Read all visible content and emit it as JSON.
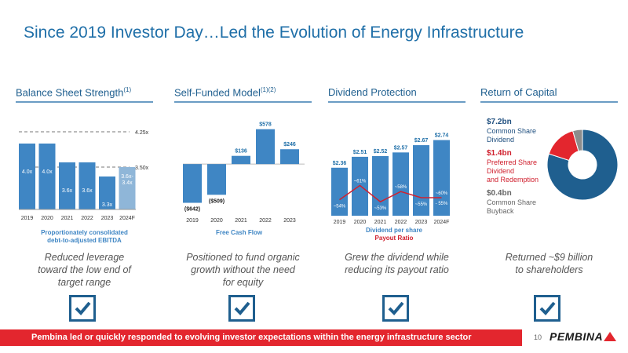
{
  "slide": {
    "title": "Since 2019 Investor Day…Led the Evolution of Energy Infrastructure",
    "page_number": "10",
    "footer": "Pembina led or quickly responded to evolving investor expectations within the energy infrastructure sector",
    "logo_text": "PEMBINA"
  },
  "panels": {
    "balance": {
      "header": "Balance Sheet Strength",
      "header_sup": "(1)",
      "caption1": "Proportionately consolidated",
      "caption2": "debt-to-adjusted EBITDA",
      "blurb1": "Reduced leverage",
      "blurb2": "toward the low end of",
      "blurb3": "target range"
    },
    "self_funded": {
      "header": "Self-Funded Model",
      "header_sup": "(1)(2)",
      "caption": "Free Cash Flow",
      "blurb1": "Positioned to fund organic",
      "blurb2": "growth without the need",
      "blurb3": "for equity"
    },
    "dividend": {
      "header": "Dividend Protection",
      "caption1": "Dividend per share",
      "caption2": "Payout Ratio",
      "blurb1": "Grew the dividend while",
      "blurb2": "reducing its payout ratio"
    },
    "return": {
      "header": "Return of Capital",
      "blurb1": "Returned ~$9 billion",
      "blurb2": "to shareholders",
      "legend": [
        {
          "value": "$7.2bn",
          "label_lines": [
            "Common Share",
            "Dividend"
          ],
          "color": "#1f5f8f"
        },
        {
          "value": "$1.4bn",
          "label_lines": [
            "Preferred Share",
            "Dividend",
            "and Redemption"
          ],
          "color": "#e3262e"
        },
        {
          "value": "$0.4bn",
          "label_lines": [
            "Common Share Buyback"
          ],
          "color": "#8c8c8c"
        }
      ]
    }
  },
  "colors": {
    "accent_blue": "#1f6fa8",
    "bar_blue": "#3f86c4",
    "red": "#e3262e",
    "gray": "#8c8c8c"
  },
  "icons": [
    "checkbox-checked-icon"
  ],
  "chart_data": [
    {
      "type": "bar",
      "title": "Balance Sheet Strength",
      "categories": [
        "2019",
        "2020",
        "2021",
        "2022",
        "2023",
        "2024F"
      ],
      "values": [
        4.0,
        4.0,
        3.6,
        3.6,
        3.3,
        3.5
      ],
      "value_labels": [
        "4.0x",
        "4.0x",
        "3.6x",
        "3.6x",
        "3.3x",
        "3.6x-3.4x"
      ],
      "reference_lines": [
        {
          "label": "4.25x",
          "value": 4.25
        },
        {
          "label": "3.50x",
          "value": 3.5
        }
      ],
      "ylim": [
        2.6,
        4.5
      ]
    },
    {
      "type": "bar",
      "title": "Free Cash Flow",
      "categories": [
        "2019",
        "2020",
        "2021",
        "2022",
        "2023"
      ],
      "values": [
        -642,
        -509,
        136,
        578,
        246
      ],
      "value_labels": [
        "($642)",
        "($509)",
        "$136",
        "$578",
        "$246"
      ],
      "ylim": [
        -700,
        600
      ]
    },
    {
      "type": "bar",
      "title": "Dividend per share",
      "categories": [
        "2019",
        "2020",
        "2021",
        "2022",
        "2023",
        "2024F"
      ],
      "values": [
        2.36,
        2.51,
        2.52,
        2.57,
        2.67,
        2.74
      ],
      "value_labels": [
        "$2.36",
        "$2.51",
        "$2.52",
        "$2.57",
        "$2.67",
        "$2.74"
      ],
      "ylim": [
        1.7,
        2.8
      ],
      "series": [
        {
          "name": "Payout Ratio",
          "type": "line",
          "values": [
            54,
            61,
            53,
            58,
            55,
            55
          ],
          "value_labels": [
            "~54%",
            "~61%",
            "~53%",
            "~58%",
            "~55%",
            "~60% - 55%"
          ]
        }
      ]
    },
    {
      "type": "pie",
      "title": "Return of Capital",
      "categories": [
        "Common Share Dividend",
        "Preferred Share Dividend and Redemption",
        "Common Share Buyback"
      ],
      "values": [
        7.2,
        1.4,
        0.4
      ],
      "value_labels": [
        "$7.2bn",
        "$1.4bn",
        "$0.4bn"
      ]
    }
  ]
}
